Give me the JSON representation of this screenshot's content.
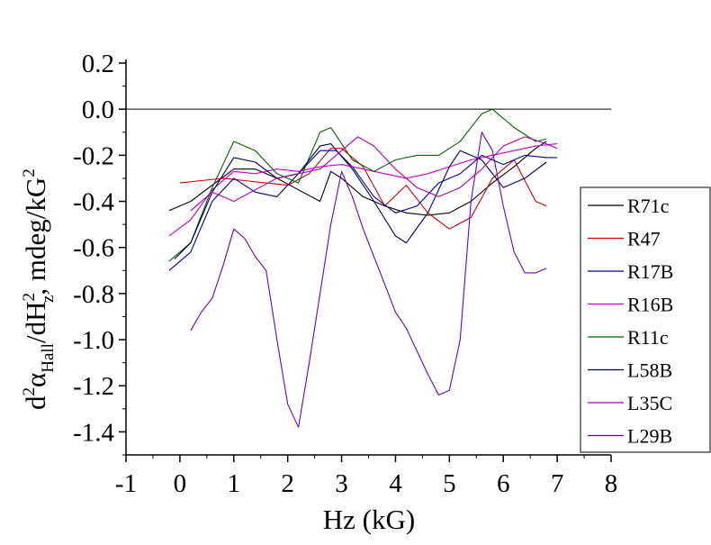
{
  "chart_data": {
    "type": "line",
    "xlabel": "Hz (kG)",
    "ylabel": {
      "d": "d",
      "sup2a": "2",
      "alpha": "α",
      "hall": "Hall",
      "slash": "/dH",
      "z": "z",
      "sup2b": "2",
      "unit": ", mdeg/kG",
      "sup2c": "2"
    },
    "xlim": [
      -1,
      8
    ],
    "ylim": [
      -1.5,
      0.2
    ],
    "xticks": [
      -1,
      0,
      1,
      2,
      3,
      4,
      5,
      6,
      7,
      8
    ],
    "xtick_labels": [
      "-1",
      "0",
      "1",
      "2",
      "3",
      "4",
      "5",
      "6",
      "7",
      "8"
    ],
    "yticks": [
      0.2,
      0.0,
      -0.2,
      -0.4,
      -0.6,
      -0.8,
      -1.0,
      -1.2,
      -1.4
    ],
    "ytick_labels": [
      "0.2",
      "0.0",
      "-0.2",
      "-0.4",
      "-0.6",
      "-0.8",
      "-1.0",
      "-1.2",
      "-1.4"
    ],
    "reference_line_y": 0.0,
    "grid": false,
    "legend_position": "right",
    "series": [
      {
        "name": "R71c",
        "color": "#000000",
        "x": [
          -0.2,
          0.2,
          0.6,
          1.0,
          1.4,
          1.8,
          2.2,
          2.6,
          2.8,
          3.0,
          3.4,
          3.8,
          4.2,
          4.6,
          5.0,
          5.4,
          5.8,
          6.2,
          6.6,
          6.8
        ],
        "y": [
          -0.44,
          -0.4,
          -0.33,
          -0.26,
          -0.26,
          -0.3,
          -0.35,
          -0.4,
          -0.27,
          -0.3,
          -0.38,
          -0.42,
          -0.45,
          -0.46,
          -0.45,
          -0.4,
          -0.32,
          -0.25,
          -0.17,
          -0.14
        ]
      },
      {
        "name": "R47",
        "color": "#cc0000",
        "x": [
          0.0,
          0.4,
          0.8,
          1.2,
          1.6,
          2.0,
          2.4,
          2.8,
          3.0,
          3.4,
          3.8,
          4.2,
          4.6,
          5.0,
          5.4,
          5.8,
          6.2,
          6.6,
          6.8
        ],
        "y": [
          -0.32,
          -0.31,
          -0.3,
          -0.31,
          -0.32,
          -0.33,
          -0.28,
          -0.17,
          -0.17,
          -0.25,
          -0.42,
          -0.33,
          -0.45,
          -0.52,
          -0.47,
          -0.3,
          -0.22,
          -0.4,
          -0.42
        ]
      },
      {
        "name": "R17B",
        "color": "#00008b",
        "x": [
          -0.2,
          0.2,
          0.6,
          1.0,
          1.4,
          1.8,
          2.2,
          2.6,
          2.9,
          3.2,
          3.6,
          4.0,
          4.4,
          4.8,
          5.2,
          5.6,
          6.0,
          6.4,
          6.8,
          7.0
        ],
        "y": [
          -0.7,
          -0.62,
          -0.4,
          -0.3,
          -0.36,
          -0.38,
          -0.28,
          -0.18,
          -0.18,
          -0.25,
          -0.38,
          -0.45,
          -0.42,
          -0.32,
          -0.28,
          -0.2,
          -0.24,
          -0.2,
          -0.21,
          -0.21
        ]
      },
      {
        "name": "R16B",
        "color": "#cc00cc",
        "x": [
          -0.2,
          0.2,
          0.6,
          1.0,
          1.4,
          1.8,
          2.2,
          2.6,
          3.0,
          3.4,
          3.8,
          4.2,
          4.6,
          5.0,
          5.4,
          5.8,
          6.2,
          6.6,
          7.0
        ],
        "y": [
          -0.55,
          -0.48,
          -0.35,
          -0.27,
          -0.28,
          -0.26,
          -0.27,
          -0.25,
          -0.24,
          -0.26,
          -0.28,
          -0.3,
          -0.28,
          -0.25,
          -0.22,
          -0.2,
          -0.18,
          -0.16,
          -0.15
        ]
      },
      {
        "name": "R11c",
        "color": "#006400",
        "x": [
          -0.2,
          0.2,
          0.6,
          1.0,
          1.4,
          1.8,
          2.2,
          2.6,
          2.8,
          3.2,
          3.6,
          4.0,
          4.4,
          4.8,
          5.2,
          5.6,
          5.8,
          6.2,
          6.6,
          6.8
        ],
        "y": [
          -0.66,
          -0.58,
          -0.34,
          -0.14,
          -0.18,
          -0.28,
          -0.32,
          -0.1,
          -0.08,
          -0.22,
          -0.27,
          -0.22,
          -0.2,
          -0.2,
          -0.14,
          -0.02,
          0.0,
          -0.08,
          -0.14,
          -0.13
        ]
      },
      {
        "name": "L58B",
        "color": "#00004d",
        "x": [
          -0.1,
          0.2,
          0.6,
          1.0,
          1.4,
          1.8,
          2.2,
          2.6,
          2.8,
          3.2,
          3.6,
          4.0,
          4.2,
          4.6,
          5.0,
          5.2,
          5.6,
          6.0,
          6.4,
          6.8
        ],
        "y": [
          -0.65,
          -0.58,
          -0.36,
          -0.21,
          -0.23,
          -0.3,
          -0.28,
          -0.16,
          -0.15,
          -0.26,
          -0.4,
          -0.55,
          -0.58,
          -0.45,
          -0.25,
          -0.18,
          -0.22,
          -0.34,
          -0.3,
          -0.23
        ]
      },
      {
        "name": "L35C",
        "color": "#aa00aa",
        "x": [
          0.2,
          0.6,
          1.0,
          1.4,
          1.8,
          2.2,
          2.6,
          3.0,
          3.3,
          3.6,
          4.0,
          4.4,
          4.8,
          5.2,
          5.6,
          6.0,
          6.4,
          6.8,
          7.0
        ],
        "y": [
          -0.44,
          -0.36,
          -0.4,
          -0.35,
          -0.3,
          -0.28,
          -0.26,
          -0.18,
          -0.12,
          -0.16,
          -0.26,
          -0.34,
          -0.38,
          -0.34,
          -0.26,
          -0.16,
          -0.12,
          -0.15,
          -0.17
        ]
      },
      {
        "name": "L29B",
        "color": "#6600cc",
        "x": [
          0.2,
          0.4,
          0.6,
          0.8,
          1.0,
          1.2,
          1.4,
          1.6,
          1.8,
          2.0,
          2.2,
          2.4,
          2.6,
          2.8,
          3.0,
          3.2,
          3.4,
          3.6,
          3.8,
          4.0,
          4.2,
          4.4,
          4.6,
          4.8,
          5.0,
          5.2,
          5.4,
          5.6,
          5.8,
          6.0,
          6.2,
          6.4,
          6.6,
          6.8
        ],
        "y": [
          -0.96,
          -0.88,
          -0.82,
          -0.68,
          -0.52,
          -0.56,
          -0.64,
          -0.7,
          -1.0,
          -1.28,
          -1.38,
          -1.1,
          -0.8,
          -0.5,
          -0.27,
          -0.38,
          -0.52,
          -0.64,
          -0.76,
          -0.88,
          -0.95,
          -1.05,
          -1.15,
          -1.24,
          -1.22,
          -1.0,
          -0.4,
          -0.1,
          -0.18,
          -0.42,
          -0.62,
          -0.71,
          -0.71,
          -0.69
        ]
      }
    ]
  }
}
